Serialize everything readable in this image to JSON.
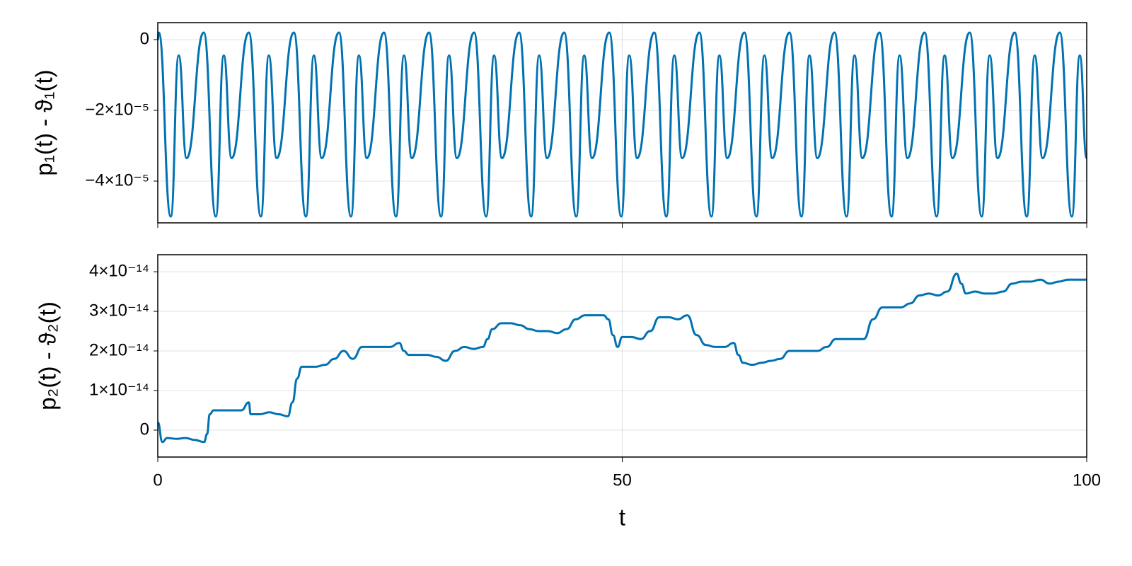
{
  "chart_data": [
    {
      "type": "line",
      "ylabel": "p₁(t) - ϑ₁(t)",
      "color": "#0072b2",
      "grid": true,
      "xtick_labels": false,
      "xlim": [
        0,
        100
      ],
      "xticks": [
        0,
        50,
        100
      ],
      "ylim": [
        -5.18e-05,
        4.8e-06
      ],
      "yticks": [
        0,
        {
          "value": -2e-05,
          "label": "−2×10⁻⁵"
        },
        {
          "value": -4e-05,
          "label": "−4×10⁻⁵"
        }
      ],
      "x": [
        0,
        0.1,
        1.4,
        2.25,
        3.1,
        4.95,
        6.25,
        7.1,
        7.95,
        9.8,
        11.1,
        11.95,
        12.8,
        14.65,
        15.95,
        16.8,
        17.65,
        19.5,
        20.8,
        21.65,
        22.5,
        24.35,
        25.65,
        26.5,
        27.35,
        29.2,
        30.5,
        31.35,
        32.2,
        34.05,
        35.35,
        36.2,
        37.05,
        38.9,
        40.2,
        41.05,
        41.9,
        43.75,
        45.05,
        45.9,
        46.75,
        48.6,
        49.9,
        50.75,
        51.6,
        53.45,
        54.75,
        55.6,
        56.45,
        58.3,
        59.6,
        60.45,
        61.3,
        63.15,
        64.45,
        65.3,
        66.15,
        68.0,
        69.3,
        70.15,
        71.0,
        72.85,
        74.15,
        75.0,
        75.85,
        77.7,
        79.0,
        79.85,
        80.7,
        82.55,
        83.85,
        84.7,
        85.55,
        87.4,
        88.7,
        89.55,
        90.4,
        92.25,
        93.55,
        94.4,
        95.25,
        97.1,
        98.4,
        99.25,
        100
      ],
      "values": [
        0,
        2e-06,
        -5e-05,
        -4.5e-06,
        -3.35e-05,
        2e-06,
        -5e-05,
        -4.5e-06,
        -3.35e-05,
        2e-06,
        -5e-05,
        -4.5e-06,
        -3.35e-05,
        2e-06,
        -5e-05,
        -4.5e-06,
        -3.35e-05,
        2e-06,
        -5e-05,
        -4.5e-06,
        -3.35e-05,
        2e-06,
        -5e-05,
        -4.5e-06,
        -3.35e-05,
        2e-06,
        -5e-05,
        -4.5e-06,
        -3.35e-05,
        2e-06,
        -5e-05,
        -4.5e-06,
        -3.35e-05,
        2e-06,
        -5e-05,
        -4.5e-06,
        -3.35e-05,
        2e-06,
        -5e-05,
        -4.5e-06,
        -3.35e-05,
        2e-06,
        -5e-05,
        -4.5e-06,
        -3.35e-05,
        2e-06,
        -5e-05,
        -4.5e-06,
        -3.35e-05,
        2e-06,
        -5e-05,
        -4.5e-06,
        -3.35e-05,
        2e-06,
        -5e-05,
        -4.5e-06,
        -3.35e-05,
        2e-06,
        -5e-05,
        -4.5e-06,
        -3.35e-05,
        2e-06,
        -5e-05,
        -4.5e-06,
        -3.35e-05,
        2e-06,
        -5e-05,
        -4.5e-06,
        -3.35e-05,
        2e-06,
        -5e-05,
        -4.5e-06,
        -3.35e-05,
        2e-06,
        -5e-05,
        -4.5e-06,
        -3.35e-05,
        2e-06,
        -5e-05,
        -4.5e-06,
        -3.35e-05,
        2e-06,
        -5e-05,
        -4.5e-06,
        -3.35e-05
      ]
    },
    {
      "type": "line",
      "ylabel": "p₂(t) - ϑ₂(t)",
      "xlabel": "t",
      "color": "#0072b2",
      "grid": true,
      "xlim": [
        0,
        100
      ],
      "xticks": [
        0,
        50,
        100
      ],
      "ylim": [
        -6.8e-15,
        4.43e-14
      ],
      "yticks": [
        0,
        {
          "value": 1e-14,
          "label": "1×10⁻¹⁴"
        },
        {
          "value": 2e-14,
          "label": "2×10⁻¹⁴"
        },
        {
          "value": 3e-14,
          "label": "3×10⁻¹⁴"
        },
        {
          "value": 4e-14,
          "label": "4×10⁻¹⁴"
        }
      ],
      "x": [
        0,
        0.5,
        1,
        2,
        3,
        4,
        5,
        5.3,
        5.6,
        6,
        8,
        9,
        9.8,
        10,
        11,
        12,
        13,
        14,
        14.5,
        15,
        15.5,
        16,
        17,
        18,
        19,
        20,
        21,
        22,
        24,
        25,
        26,
        26.5,
        27,
        28,
        29,
        30,
        31,
        32,
        33,
        34,
        35,
        35.5,
        36,
        37,
        38,
        39,
        40,
        41,
        42,
        43,
        44,
        45,
        46,
        47,
        48,
        48.5,
        49,
        49.5,
        50,
        51,
        52,
        53,
        54,
        55,
        56,
        57,
        58,
        59,
        60,
        61,
        62,
        62.5,
        63,
        64,
        65,
        66,
        67,
        68,
        69,
        70,
        71,
        72,
        73,
        74,
        75,
        76,
        77,
        78,
        79,
        80,
        81,
        82,
        83,
        84,
        85,
        86,
        86.5,
        87,
        88,
        89,
        90,
        91,
        92,
        93,
        94,
        95,
        96,
        97,
        98,
        99,
        100
      ],
      "values": [
        2e-15,
        -3e-15,
        -2e-15,
        -2.2e-15,
        -2e-15,
        -2.5e-15,
        -3e-15,
        -1e-15,
        4e-15,
        5e-15,
        5e-15,
        5e-15,
        7e-15,
        4e-15,
        4e-15,
        4.5e-15,
        4e-15,
        3.5e-15,
        7e-15,
        1.3e-14,
        1.6e-14,
        1.6e-14,
        1.6e-14,
        1.65e-14,
        1.8e-14,
        2e-14,
        1.8e-14,
        2.1e-14,
        2.1e-14,
        2.1e-14,
        2.2e-14,
        2e-14,
        1.9e-14,
        1.9e-14,
        1.9e-14,
        1.85e-14,
        1.75e-14,
        2e-14,
        2.1e-14,
        2.05e-14,
        2.1e-14,
        2.3e-14,
        2.55e-14,
        2.7e-14,
        2.7e-14,
        2.65e-14,
        2.55e-14,
        2.5e-14,
        2.5e-14,
        2.45e-14,
        2.55e-14,
        2.8e-14,
        2.9e-14,
        2.9e-14,
        2.9e-14,
        2.8e-14,
        2.4e-14,
        2.1e-14,
        2.35e-14,
        2.35e-14,
        2.3e-14,
        2.5e-14,
        2.85e-14,
        2.85e-14,
        2.8e-14,
        2.9e-14,
        2.4e-14,
        2.15e-14,
        2.1e-14,
        2.1e-14,
        2.2e-14,
        1.9e-14,
        1.7e-14,
        1.65e-14,
        1.7e-14,
        1.75e-14,
        1.8e-14,
        2e-14,
        2e-14,
        2e-14,
        2e-14,
        2.1e-14,
        2.3e-14,
        2.3e-14,
        2.3e-14,
        2.3e-14,
        2.8e-14,
        3.1e-14,
        3.1e-14,
        3.1e-14,
        3.2e-14,
        3.4e-14,
        3.45e-14,
        3.4e-14,
        3.5e-14,
        3.95e-14,
        3.7e-14,
        3.45e-14,
        3.5e-14,
        3.45e-14,
        3.45e-14,
        3.5e-14,
        3.7e-14,
        3.75e-14,
        3.75e-14,
        3.8e-14,
        3.7e-14,
        3.75e-14,
        3.8e-14,
        3.8e-14,
        3.8e-14
      ]
    }
  ]
}
